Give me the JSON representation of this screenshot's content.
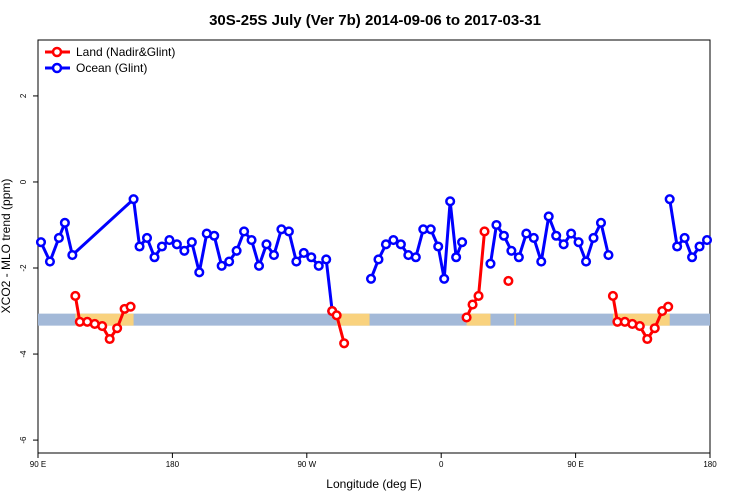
{
  "chart_data": {
    "type": "line",
    "title": "30S-25S July (Ver 7b)   2014-09-06 to 2017-03-31",
    "xlabel": "Longitude (deg E)",
    "ylabel": "XCO2 - MLO trend (ppm)",
    "x_axis": {
      "ticks": [
        {
          "pos": 0,
          "label": "90 E"
        },
        {
          "pos": 90,
          "label": "180"
        },
        {
          "pos": 180,
          "label": "90 W"
        },
        {
          "pos": 270,
          "label": "0"
        },
        {
          "pos": 360,
          "label": "90 E"
        },
        {
          "pos": 450,
          "label": "180"
        }
      ],
      "range": [
        0,
        450
      ]
    },
    "y_axis": {
      "ticks": [
        -6,
        -4,
        -2,
        0,
        2
      ],
      "range": [
        -6.3,
        3.3
      ]
    },
    "legend": {
      "position": "top-left",
      "entries": [
        {
          "label": "Land (Nadir&Glint)",
          "color": "#ff0000"
        },
        {
          "label": "Ocean (Glint)",
          "color": "#0000ff"
        }
      ]
    },
    "background_band": {
      "y": -3.2,
      "ocean_color": "#a3b9d8",
      "land_color": "#f9d27e",
      "land_segments": [
        [
          25,
          64
        ],
        [
          200,
          222
        ],
        [
          287,
          303
        ],
        [
          319,
          320
        ],
        [
          385,
          423
        ]
      ]
    },
    "series": [
      {
        "name": "Ocean (Glint)",
        "color": "#0000ff",
        "segments": [
          [
            [
              2,
              -1.4
            ],
            [
              8,
              -1.85
            ],
            [
              14,
              -1.3
            ],
            [
              18,
              -0.95
            ],
            [
              23,
              -1.7
            ],
            [
              64,
              -0.4
            ],
            [
              68,
              -1.5
            ],
            [
              73,
              -1.3
            ],
            [
              78,
              -1.75
            ],
            [
              83,
              -1.5
            ],
            [
              88,
              -1.35
            ],
            [
              93,
              -1.45
            ],
            [
              98,
              -1.6
            ],
            [
              103,
              -1.4
            ],
            [
              108,
              -2.1
            ],
            [
              113,
              -1.2
            ],
            [
              118,
              -1.25
            ],
            [
              123,
              -1.95
            ],
            [
              128,
              -1.85
            ],
            [
              133,
              -1.6
            ],
            [
              138,
              -1.15
            ],
            [
              143,
              -1.35
            ],
            [
              148,
              -1.95
            ],
            [
              153,
              -1.45
            ],
            [
              158,
              -1.7
            ],
            [
              163,
              -1.1
            ],
            [
              168,
              -1.15
            ],
            [
              173,
              -1.85
            ],
            [
              178,
              -1.65
            ],
            [
              183,
              -1.75
            ],
            [
              188,
              -1.95
            ],
            [
              193,
              -1.8
            ],
            [
              197,
              -3.0
            ]
          ],
          [
            [
              223,
              -2.25
            ],
            [
              228,
              -1.8
            ],
            [
              233,
              -1.45
            ],
            [
              238,
              -1.35
            ],
            [
              243,
              -1.45
            ],
            [
              248,
              -1.7
            ],
            [
              253,
              -1.75
            ],
            [
              258,
              -1.1
            ],
            [
              263,
              -1.1
            ],
            [
              268,
              -1.5
            ],
            [
              272,
              -2.25
            ],
            [
              276,
              -0.45
            ],
            [
              280,
              -1.75
            ],
            [
              284,
              -1.4
            ]
          ],
          [
            [
              303,
              -1.9
            ],
            [
              307,
              -1.0
            ],
            [
              312,
              -1.25
            ],
            [
              317,
              -1.6
            ],
            [
              322,
              -1.75
            ],
            [
              327,
              -1.2
            ],
            [
              332,
              -1.3
            ],
            [
              337,
              -1.85
            ],
            [
              342,
              -0.8
            ],
            [
              347,
              -1.25
            ],
            [
              352,
              -1.45
            ],
            [
              357,
              -1.2
            ],
            [
              362,
              -1.4
            ],
            [
              367,
              -1.85
            ],
            [
              372,
              -1.3
            ],
            [
              377,
              -0.95
            ],
            [
              382,
              -1.7
            ]
          ],
          [
            [
              423,
              -0.4
            ],
            [
              428,
              -1.5
            ],
            [
              433,
              -1.3
            ],
            [
              438,
              -1.75
            ],
            [
              443,
              -1.5
            ],
            [
              448,
              -1.35
            ]
          ]
        ]
      },
      {
        "name": "Land (Nadir&Glint)",
        "color": "#ff0000",
        "segments": [
          [
            [
              25,
              -2.65
            ],
            [
              28,
              -3.25
            ],
            [
              33,
              -3.25
            ],
            [
              38,
              -3.3
            ],
            [
              43,
              -3.35
            ],
            [
              48,
              -3.65
            ],
            [
              53,
              -3.4
            ],
            [
              58,
              -2.95
            ],
            [
              62,
              -2.9
            ]
          ],
          [
            [
              197,
              -3.0
            ],
            [
              200,
              -3.1
            ],
            [
              205,
              -3.75
            ]
          ],
          [
            [
              287,
              -3.15
            ],
            [
              291,
              -2.85
            ],
            [
              295,
              -2.65
            ],
            [
              299,
              -1.15
            ]
          ],
          [
            [
              315,
              -2.3
            ]
          ],
          [
            [
              385,
              -2.65
            ],
            [
              388,
              -3.25
            ],
            [
              393,
              -3.25
            ],
            [
              398,
              -3.3
            ],
            [
              403,
              -3.35
            ],
            [
              408,
              -3.65
            ],
            [
              413,
              -3.4
            ],
            [
              418,
              -3.0
            ],
            [
              422,
              -2.9
            ]
          ]
        ]
      }
    ]
  }
}
